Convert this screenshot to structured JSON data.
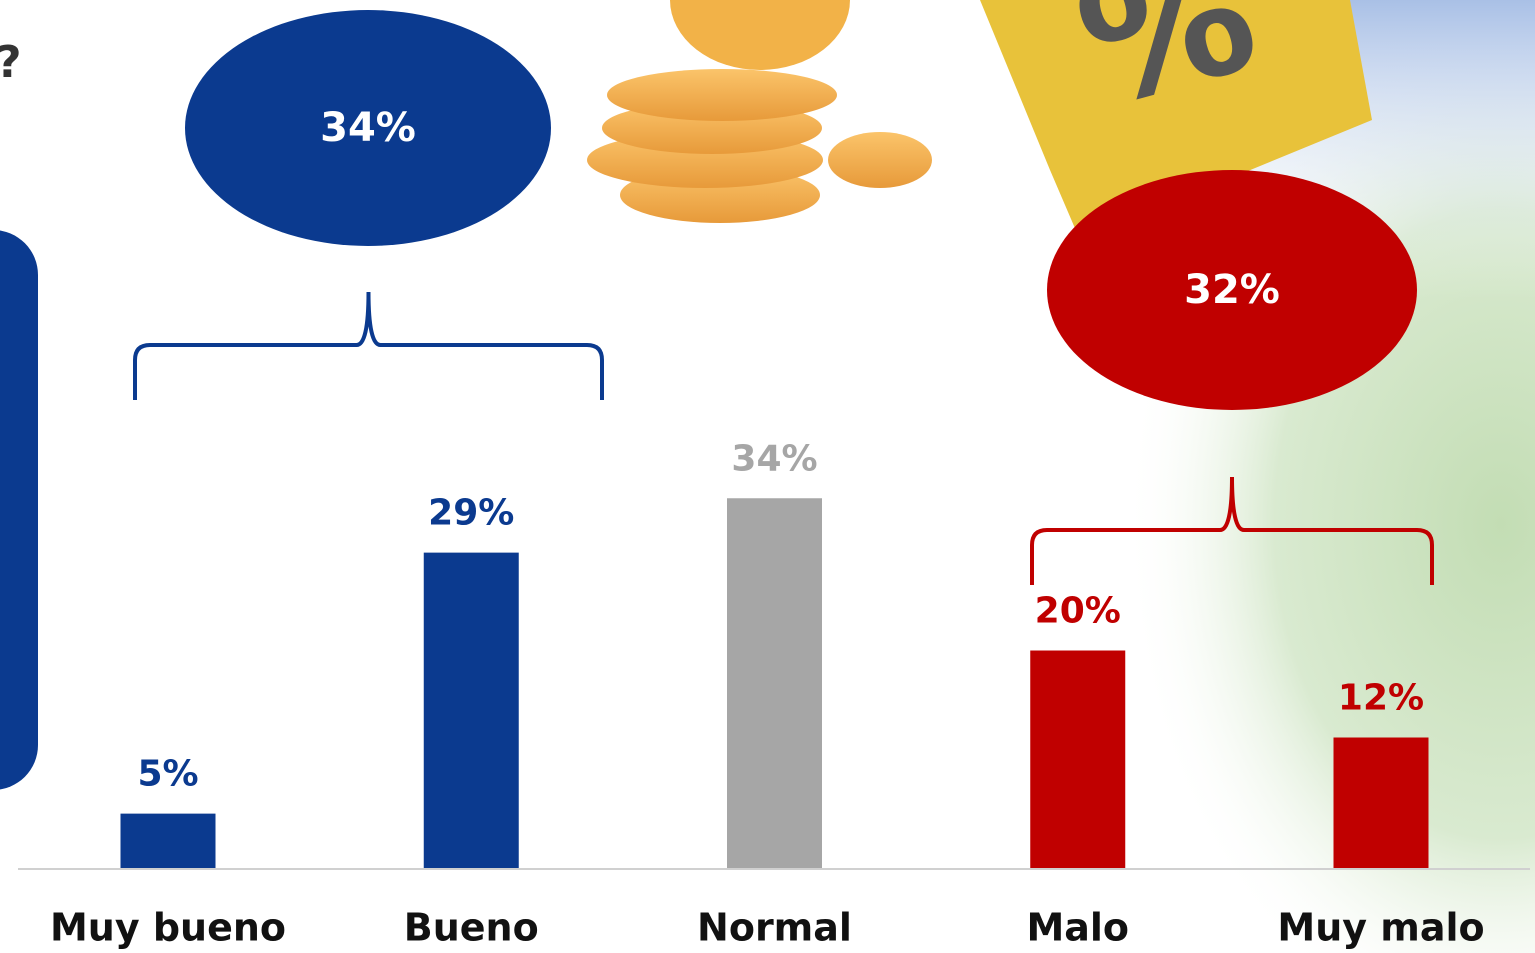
{
  "chart_data": {
    "type": "bar",
    "title": "?",
    "categories": [
      "Muy bueno",
      "Bueno",
      "Normal",
      "Malo",
      "Muy malo"
    ],
    "values": [
      5,
      29,
      34,
      20,
      12
    ],
    "value_labels": [
      "5%",
      "29%",
      "34%",
      "20%",
      "12%"
    ],
    "colors": [
      "#0b3a8f",
      "#0b3a8f",
      "#a6a6a6",
      "#c00000",
      "#c00000"
    ],
    "ylim": [
      0,
      40
    ],
    "annotations": [
      {
        "text": "34%",
        "color": "#0b3a8f"
      },
      {
        "text": "32%",
        "color": "#c00000"
      }
    ]
  }
}
